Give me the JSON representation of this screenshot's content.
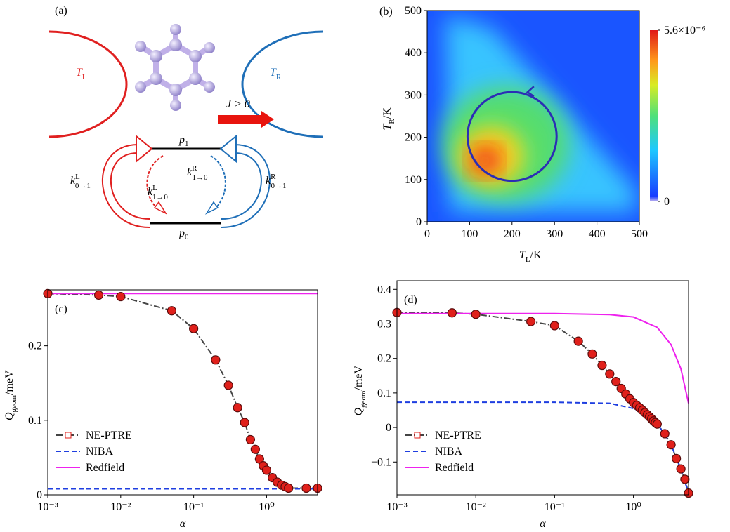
{
  "diagram": {
    "label": "(a)",
    "left_bath": {
      "text": "T",
      "sub": "L"
    },
    "right_bath": {
      "text": "T",
      "sub": "R"
    },
    "current": "J > 0",
    "upper_level": {
      "text": "p",
      "sub": "1"
    },
    "lower_level": {
      "text": "p",
      "sub": "0"
    },
    "rates": [
      {
        "text": "k",
        "sup": "L",
        "sub": "0→1"
      },
      {
        "text": "k",
        "sup": "L",
        "sub": "1→0"
      },
      {
        "text": "k",
        "sup": "R",
        "sub": "1→0"
      },
      {
        "text": "k",
        "sup": "R",
        "sub": "0→1"
      }
    ]
  },
  "chart_data": [
    {
      "type": "heatmap",
      "label": "(b)",
      "xlabel": {
        "text": "T",
        "sub": "L",
        "unit": "/K"
      },
      "ylabel": {
        "text": "T",
        "sub": "R",
        "unit": "/K"
      },
      "xlim": [
        0,
        500
      ],
      "ylim": [
        0,
        500
      ],
      "xticks": [
        0,
        100,
        200,
        300,
        400,
        500
      ],
      "yticks": [
        0,
        100,
        200,
        300,
        400,
        500
      ],
      "colorbar": {
        "lim": [
          0,
          5.6e-06
        ],
        "ticks": [
          {
            "value": 5.6e-06,
            "label": "5.6×10⁻⁶"
          },
          0
        ]
      },
      "loop": {
        "center": [
          200,
          202
        ],
        "radius": 105,
        "color": "#2b2db5"
      }
    },
    {
      "type": "line",
      "label": "(c)",
      "xscale": "log",
      "xlabel": "α",
      "ylabel": {
        "text": "Q",
        "sub": "geom",
        "unit": "/meV"
      },
      "xlim": [
        0.001,
        5
      ],
      "ylim": [
        0,
        0.275
      ],
      "xticks": [
        {
          "value": 0.001,
          "label": "10⁻³"
        },
        {
          "value": 0.01,
          "label": "10⁻²"
        },
        {
          "value": 0.1,
          "label": "10⁻¹"
        },
        {
          "value": 1,
          "label": "10⁰"
        }
      ],
      "yticks": [
        0,
        0.1,
        0.2
      ],
      "legend": "lower left",
      "series": [
        {
          "name": "NE-PTRE",
          "color": "#444444",
          "marker_color": "#e0201b",
          "style": "dashdot",
          "x": [
            0.001,
            0.005,
            0.01,
            0.05,
            0.1,
            0.2,
            0.3,
            0.4,
            0.5,
            0.6,
            0.7,
            0.8,
            0.9,
            1.0,
            1.2,
            1.4,
            1.6,
            1.8,
            2,
            3.5,
            5
          ],
          "values": [
            0.27,
            0.268,
            0.266,
            0.247,
            0.223,
            0.181,
            0.147,
            0.117,
            0.097,
            0.074,
            0.061,
            0.048,
            0.039,
            0.033,
            0.023,
            0.017,
            0.013,
            0.011,
            0.009,
            0.009,
            0.009
          ]
        },
        {
          "name": "NIBA",
          "color": "#1f3fe0",
          "style": "dashed",
          "x": [
            0.001,
            5
          ],
          "values": [
            0.008,
            0.008
          ]
        },
        {
          "name": "Redfield",
          "color": "#ee22ee",
          "style": "solid",
          "x": [
            0.001,
            5
          ],
          "values": [
            0.27,
            0.27
          ]
        }
      ]
    },
    {
      "type": "line",
      "label": "(d)",
      "xscale": "log",
      "xlabel": "α",
      "ylabel": {
        "text": "Q",
        "sub": "geom",
        "unit": "/meV"
      },
      "xlim": [
        0.001,
        5
      ],
      "ylim": [
        -0.195,
        0.425
      ],
      "xticks": [
        {
          "value": 0.001,
          "label": "10⁻³"
        },
        {
          "value": 0.01,
          "label": "10⁻²"
        },
        {
          "value": 0.1,
          "label": "10⁻¹"
        },
        {
          "value": 1,
          "label": "10⁰"
        }
      ],
      "yticks": [
        {
          "value": -0.1,
          "label": "−0.1"
        },
        0,
        0.1,
        0.2,
        0.3,
        0.4
      ],
      "legend": "lower left",
      "series": [
        {
          "name": "NE-PTRE",
          "color": "#444444",
          "marker_color": "#e0201b",
          "style": "dashdot",
          "x": [
            0.001,
            0.005,
            0.01,
            0.05,
            0.1,
            0.2,
            0.3,
            0.4,
            0.5,
            0.6,
            0.7,
            0.8,
            0.9,
            1.0,
            1.1,
            1.2,
            1.3,
            1.4,
            1.5,
            1.6,
            1.7,
            1.8,
            1.9,
            2.0,
            2.5,
            3,
            3.5,
            4,
            4.5,
            5
          ],
          "values": [
            0.333,
            0.332,
            0.328,
            0.307,
            0.295,
            0.25,
            0.213,
            0.18,
            0.155,
            0.133,
            0.113,
            0.097,
            0.083,
            0.072,
            0.064,
            0.057,
            0.05,
            0.043,
            0.037,
            0.031,
            0.025,
            0.019,
            0.014,
            0.01,
            -0.018,
            -0.05,
            -0.09,
            -0.12,
            -0.15,
            -0.19
          ]
        },
        {
          "name": "NIBA",
          "color": "#1f3fe0",
          "style": "dashed",
          "x": [
            0.001,
            0.1,
            0.5,
            1,
            1.5,
            2,
            2.5,
            3,
            4,
            5
          ],
          "values": [
            0.073,
            0.073,
            0.07,
            0.055,
            0.035,
            0.01,
            -0.02,
            -0.05,
            -0.12,
            -0.19
          ]
        },
        {
          "name": "Redfield",
          "color": "#ee22ee",
          "style": "solid",
          "x": [
            0.001,
            0.1,
            0.5,
            1,
            2,
            3,
            4,
            5
          ],
          "values": [
            0.33,
            0.33,
            0.327,
            0.32,
            0.29,
            0.24,
            0.17,
            0.07
          ]
        }
      ]
    }
  ]
}
